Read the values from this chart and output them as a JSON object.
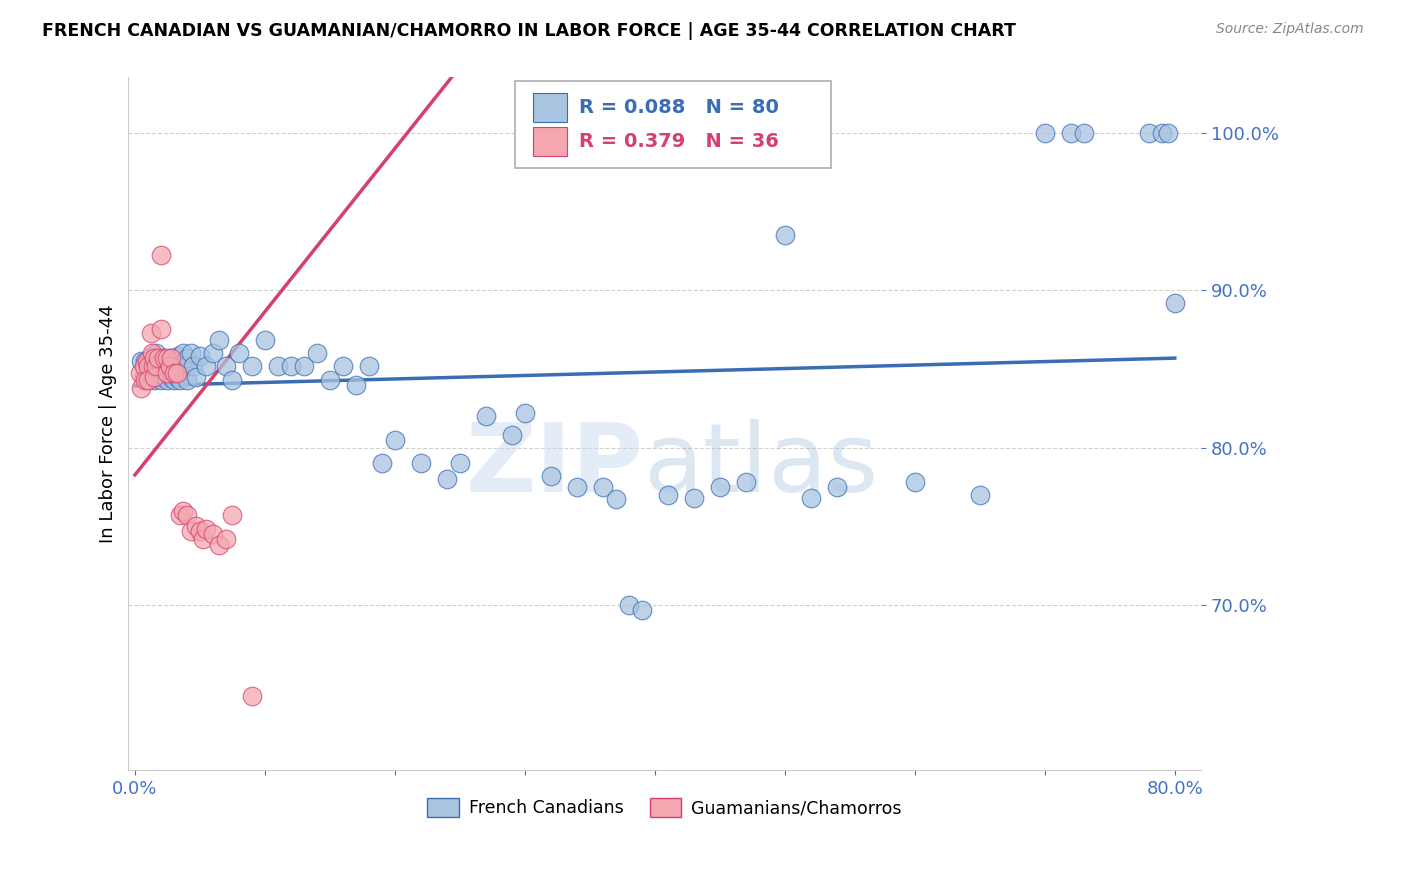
{
  "title": "FRENCH CANADIAN VS GUAMANIAN/CHAMORRO IN LABOR FORCE | AGE 35-44 CORRELATION CHART",
  "source": "Source: ZipAtlas.com",
  "ylabel": "In Labor Force | Age 35-44",
  "blue_R": 0.088,
  "blue_N": 80,
  "pink_R": 0.379,
  "pink_N": 36,
  "blue_color": "#A8C4E0",
  "pink_color": "#F4A7B0",
  "blue_line_color": "#3B6DB5",
  "pink_line_color": "#D44070",
  "legend_label_blue": "French Canadians",
  "legend_label_pink": "Guamanians/Chamorros",
  "xlim_min": 0.0,
  "xlim_max": 0.8,
  "ylim_min": 0.595,
  "ylim_max": 1.035,
  "blue_scatter_x": [
    0.005,
    0.007,
    0.008,
    0.009,
    0.01,
    0.012,
    0.013,
    0.015,
    0.015,
    0.016,
    0.018,
    0.02,
    0.02,
    0.022,
    0.023,
    0.025,
    0.025,
    0.027,
    0.028,
    0.03,
    0.03,
    0.03,
    0.032,
    0.033,
    0.035,
    0.035,
    0.037,
    0.04,
    0.04,
    0.04,
    0.043,
    0.045,
    0.047,
    0.05,
    0.055,
    0.06,
    0.065,
    0.07,
    0.075,
    0.08,
    0.09,
    0.1,
    0.11,
    0.12,
    0.13,
    0.14,
    0.15,
    0.16,
    0.17,
    0.18,
    0.19,
    0.2,
    0.22,
    0.24,
    0.25,
    0.27,
    0.29,
    0.3,
    0.32,
    0.34,
    0.36,
    0.37,
    0.38,
    0.39,
    0.41,
    0.43,
    0.45,
    0.47,
    0.5,
    0.52,
    0.54,
    0.6,
    0.65,
    0.7,
    0.72,
    0.73,
    0.78,
    0.79,
    0.795,
    0.8
  ],
  "blue_scatter_y": [
    0.855,
    0.845,
    0.855,
    0.845,
    0.855,
    0.845,
    0.858,
    0.852,
    0.843,
    0.86,
    0.845,
    0.852,
    0.843,
    0.857,
    0.845,
    0.852,
    0.843,
    0.857,
    0.845,
    0.852,
    0.843,
    0.857,
    0.845,
    0.858,
    0.852,
    0.843,
    0.86,
    0.852,
    0.843,
    0.857,
    0.86,
    0.852,
    0.845,
    0.858,
    0.852,
    0.86,
    0.868,
    0.852,
    0.843,
    0.86,
    0.852,
    0.868,
    0.852,
    0.852,
    0.852,
    0.86,
    0.843,
    0.852,
    0.84,
    0.852,
    0.79,
    0.805,
    0.79,
    0.78,
    0.79,
    0.82,
    0.808,
    0.822,
    0.782,
    0.775,
    0.775,
    0.767,
    0.7,
    0.697,
    0.77,
    0.768,
    0.775,
    0.778,
    0.935,
    0.768,
    0.775,
    0.778,
    0.77,
    1.0,
    1.0,
    1.0,
    1.0,
    1.0,
    1.0,
    0.892
  ],
  "pink_scatter_x": [
    0.004,
    0.005,
    0.007,
    0.008,
    0.009,
    0.01,
    0.01,
    0.012,
    0.013,
    0.014,
    0.015,
    0.015,
    0.016,
    0.018,
    0.02,
    0.02,
    0.022,
    0.025,
    0.025,
    0.027,
    0.028,
    0.03,
    0.032,
    0.035,
    0.037,
    0.04,
    0.043,
    0.047,
    0.05,
    0.052,
    0.055,
    0.06,
    0.065,
    0.07,
    0.075,
    0.09
  ],
  "pink_scatter_y": [
    0.847,
    0.838,
    0.852,
    0.843,
    0.855,
    0.852,
    0.843,
    0.873,
    0.86,
    0.852,
    0.857,
    0.845,
    0.852,
    0.857,
    0.922,
    0.875,
    0.857,
    0.857,
    0.847,
    0.852,
    0.857,
    0.847,
    0.847,
    0.757,
    0.76,
    0.757,
    0.747,
    0.75,
    0.747,
    0.742,
    0.748,
    0.745,
    0.738,
    0.742,
    0.757,
    0.642
  ]
}
